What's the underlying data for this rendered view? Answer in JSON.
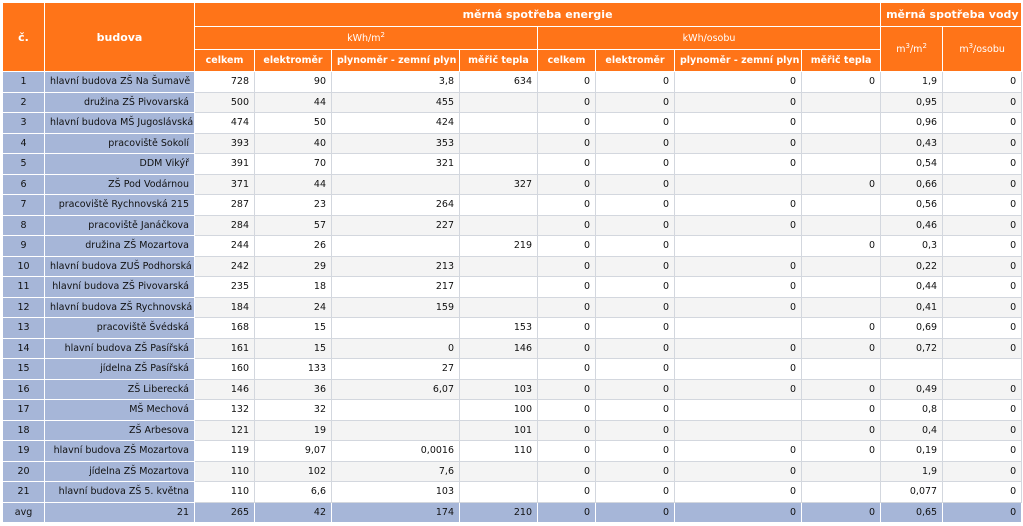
{
  "header": {
    "col_no": "č.",
    "col_building": "budova",
    "energy_group": "měrná spotřeba energie",
    "water_group": "měrná spotřeba vody",
    "unit_kwh_m2": "kWh/m",
    "unit_kwh_m2_sup": "2",
    "unit_kwh_person": "kWh/osobu",
    "water_m3_m2_a": "m",
    "water_m3_m2_sup": "3",
    "water_m3_m2_b": "/m",
    "water_m3_m2_sup2": "2",
    "water_m3_person_a": "m",
    "water_m3_person_sup": "3",
    "water_m3_person_b": "/osobu",
    "sub1": [
      "celkem",
      "elektroměr",
      "plynoměr - zemní plyn",
      "měřič tepla"
    ],
    "sub2": [
      "celkem",
      "elektroměr",
      "plynoměr - zemní plyn",
      "měřič tepla"
    ]
  },
  "rows": [
    [
      "1",
      "hlavní budova ZŠ Na Šumavě",
      "728",
      "90",
      "3,8",
      "634",
      "0",
      "0",
      "0",
      "0",
      "1,9",
      "0"
    ],
    [
      "2",
      "družina ZŠ Pivovarská",
      "500",
      "44",
      "455",
      "",
      "0",
      "0",
      "0",
      "",
      "0,95",
      "0"
    ],
    [
      "3",
      "hlavní budova MŠ Jugoslávská",
      "474",
      "50",
      "424",
      "",
      "0",
      "0",
      "0",
      "",
      "0,96",
      "0"
    ],
    [
      "4",
      "pracoviště Sokolí",
      "393",
      "40",
      "353",
      "",
      "0",
      "0",
      "0",
      "",
      "0,43",
      "0"
    ],
    [
      "5",
      "DDM Vikýř",
      "391",
      "70",
      "321",
      "",
      "0",
      "0",
      "0",
      "",
      "0,54",
      "0"
    ],
    [
      "6",
      "ZŠ Pod Vodárnou",
      "371",
      "44",
      "",
      "327",
      "0",
      "0",
      "",
      "0",
      "0,66",
      "0"
    ],
    [
      "7",
      "pracoviště Rychnovská 215",
      "287",
      "23",
      "264",
      "",
      "0",
      "0",
      "0",
      "",
      "0,56",
      "0"
    ],
    [
      "8",
      "pracoviště Janáčkova",
      "284",
      "57",
      "227",
      "",
      "0",
      "0",
      "0",
      "",
      "0,46",
      "0"
    ],
    [
      "9",
      "družina ZŠ Mozartova",
      "244",
      "26",
      "",
      "219",
      "0",
      "0",
      "",
      "0",
      "0,3",
      "0"
    ],
    [
      "10",
      "hlavní budova ZUŠ Podhorská",
      "242",
      "29",
      "213",
      "",
      "0",
      "0",
      "0",
      "",
      "0,22",
      "0"
    ],
    [
      "11",
      "hlavní budova ZŠ Pivovarská",
      "235",
      "18",
      "217",
      "",
      "0",
      "0",
      "0",
      "",
      "0,44",
      "0"
    ],
    [
      "12",
      "hlavní budova ZŠ Rychnovská",
      "184",
      "24",
      "159",
      "",
      "0",
      "0",
      "0",
      "",
      "0,41",
      "0"
    ],
    [
      "13",
      "pracoviště Švédská",
      "168",
      "15",
      "",
      "153",
      "0",
      "0",
      "",
      "0",
      "0,69",
      "0"
    ],
    [
      "14",
      "hlavní budova ZŠ Pasířská",
      "161",
      "15",
      "0",
      "146",
      "0",
      "0",
      "0",
      "0",
      "0,72",
      "0"
    ],
    [
      "15",
      "jídelna ZŠ Pasířská",
      "160",
      "133",
      "27",
      "",
      "0",
      "0",
      "0",
      "",
      "",
      ""
    ],
    [
      "16",
      "ZŠ Liberecká",
      "146",
      "36",
      "6,07",
      "103",
      "0",
      "0",
      "0",
      "0",
      "0,49",
      "0"
    ],
    [
      "17",
      "MŠ Mechová",
      "132",
      "32",
      "",
      "100",
      "0",
      "0",
      "",
      "0",
      "0,8",
      "0"
    ],
    [
      "18",
      "ZŠ Arbesova",
      "121",
      "19",
      "",
      "101",
      "0",
      "0",
      "",
      "0",
      "0,4",
      "0"
    ],
    [
      "19",
      "hlavní budova ZŠ Mozartova",
      "119",
      "9,07",
      "0,0016",
      "110",
      "0",
      "0",
      "0",
      "0",
      "0,19",
      "0"
    ],
    [
      "20",
      "jídelna ZŠ Mozartova",
      "110",
      "102",
      "7,6",
      "",
      "0",
      "0",
      "0",
      "",
      "1,9",
      "0"
    ],
    [
      "21",
      "hlavní budova ZŠ 5. května",
      "110",
      "6,6",
      "103",
      "",
      "0",
      "0",
      "0",
      "",
      "0,077",
      "0"
    ]
  ],
  "avg": [
    "avg",
    "21",
    "265",
    "42",
    "174",
    "210",
    "0",
    "0",
    "0",
    "0",
    "0,65",
    "0"
  ]
}
